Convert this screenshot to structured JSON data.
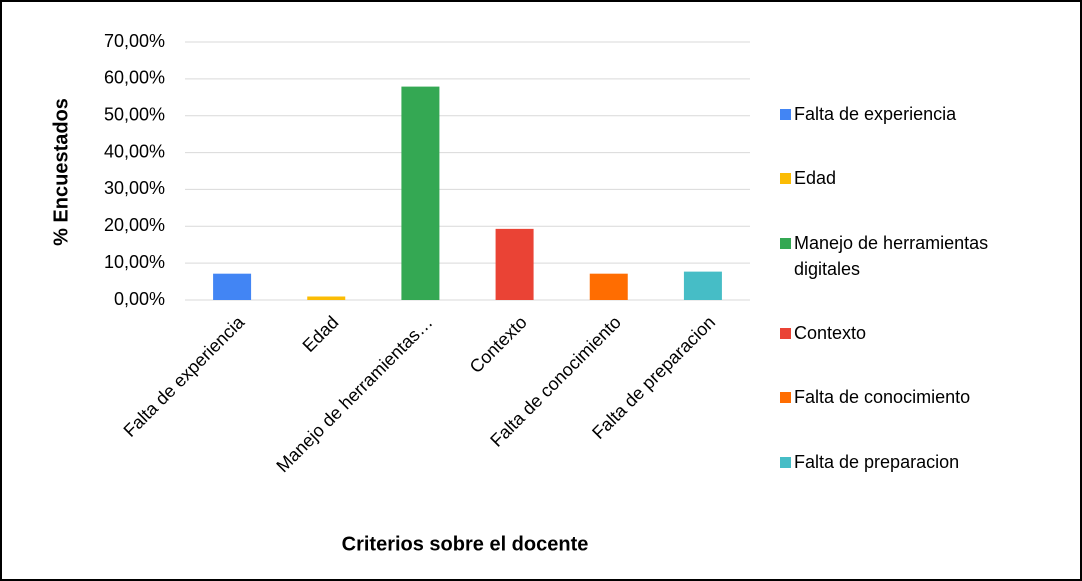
{
  "chart_data": {
    "type": "bar",
    "y_axis_label": "% Encuestados",
    "x_axis_label": "Criterios sobre el docente",
    "categories": [
      "Falta de experiencia",
      "Edad",
      "Manejo de herramientas…",
      "Contexto",
      "Falta de conocimiento",
      "Falta de preparacion"
    ],
    "legend_labels": [
      "Falta de experiencia",
      "Edad",
      "Manejo de herramientas digitales",
      "Contexto",
      "Falta de conocimiento",
      "Falta de preparacion"
    ],
    "colors": [
      "#4285f4",
      "#fbbc04",
      "#34a853",
      "#ea4335",
      "#ff6d01",
      "#46bdc6"
    ],
    "values": [
      7.14,
      0.95,
      57.9,
      19.3,
      7.14,
      7.7
    ],
    "ylim": [
      0,
      70
    ],
    "yticks": [
      {
        "value": 0,
        "label": "0,00%"
      },
      {
        "value": 10,
        "label": "10,00%"
      },
      {
        "value": 20,
        "label": "20,00%"
      },
      {
        "value": 30,
        "label": "30,00%"
      },
      {
        "value": 40,
        "label": "40,00%"
      },
      {
        "value": 50,
        "label": "50,00%"
      },
      {
        "value": 60,
        "label": "60,00%"
      },
      {
        "value": 70,
        "label": "70,00%"
      }
    ],
    "grid": true,
    "legend_position": "right"
  }
}
